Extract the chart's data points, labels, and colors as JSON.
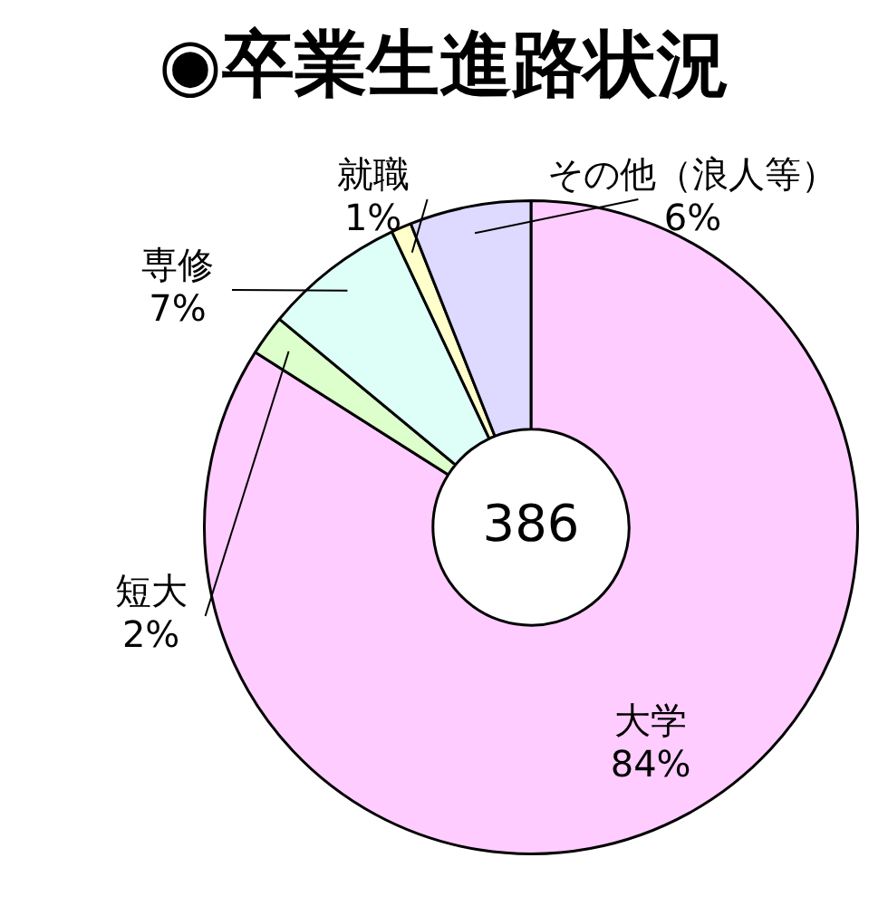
{
  "chart_data": {
    "type": "donut",
    "title": "◉卒業生進路状況",
    "categories": [
      "大学",
      "短大",
      "専修",
      "就職",
      "その他（浪人等）"
    ],
    "values": [
      84,
      2,
      7,
      1,
      6
    ],
    "value_labels": [
      "84%",
      "2%",
      "7%",
      "1%",
      "6%"
    ],
    "colors": [
      "#ffccff",
      "#ddffcc",
      "#ddfff8",
      "#ffffcc",
      "#ddd9ff"
    ],
    "annotations": [
      "386"
    ]
  }
}
